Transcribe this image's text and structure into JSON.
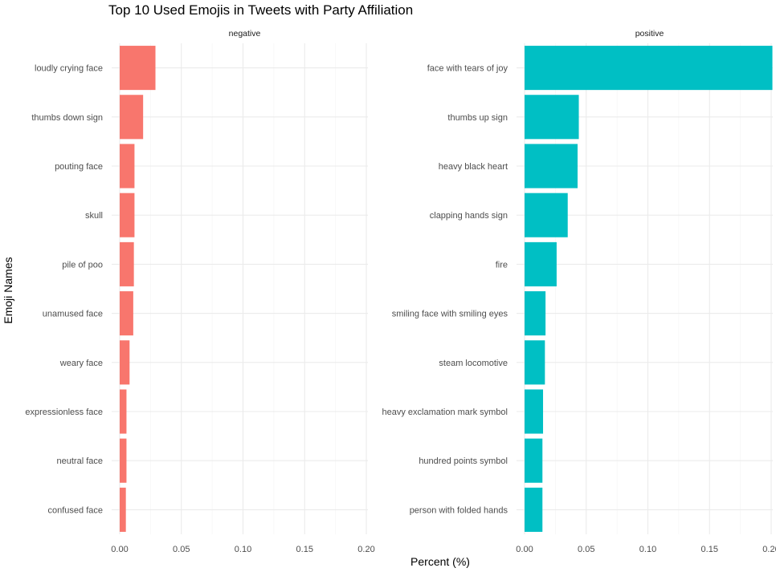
{
  "chart_data": {
    "type": "bar",
    "orientation": "horizontal",
    "title": "Top 10 Used Emojis in Tweets with Party Affiliation",
    "xlabel": "Percent (%)",
    "ylabel": "Emoji Names",
    "xlim": [
      0,
      0.2
    ],
    "xticks": [
      "0.00",
      "0.05",
      "0.10",
      "0.15",
      "0.20"
    ],
    "grid": true,
    "legend": "none",
    "panels": [
      {
        "name": "negative",
        "color": "#F8766D",
        "categories": [
          "loudly crying face",
          "thumbs down sign",
          "pouting face",
          "skull",
          "pile of poo",
          "unamused face",
          "weary face",
          "expressionless face",
          "neutral face",
          "confused face"
        ],
        "values": [
          0.029,
          0.019,
          0.012,
          0.012,
          0.0115,
          0.011,
          0.008,
          0.0055,
          0.0055,
          0.005
        ]
      },
      {
        "name": "positive",
        "color": "#00BFC4",
        "categories": [
          "face with tears of joy",
          "thumbs up sign",
          "heavy black heart",
          "clapping hands sign",
          "fire",
          "smiling face with smiling eyes",
          "steam locomotive",
          "heavy exclamation mark symbol",
          "hundred points symbol",
          "person with folded hands"
        ],
        "values": [
          0.201,
          0.044,
          0.043,
          0.035,
          0.026,
          0.017,
          0.0165,
          0.015,
          0.0145,
          0.0145
        ]
      }
    ]
  }
}
